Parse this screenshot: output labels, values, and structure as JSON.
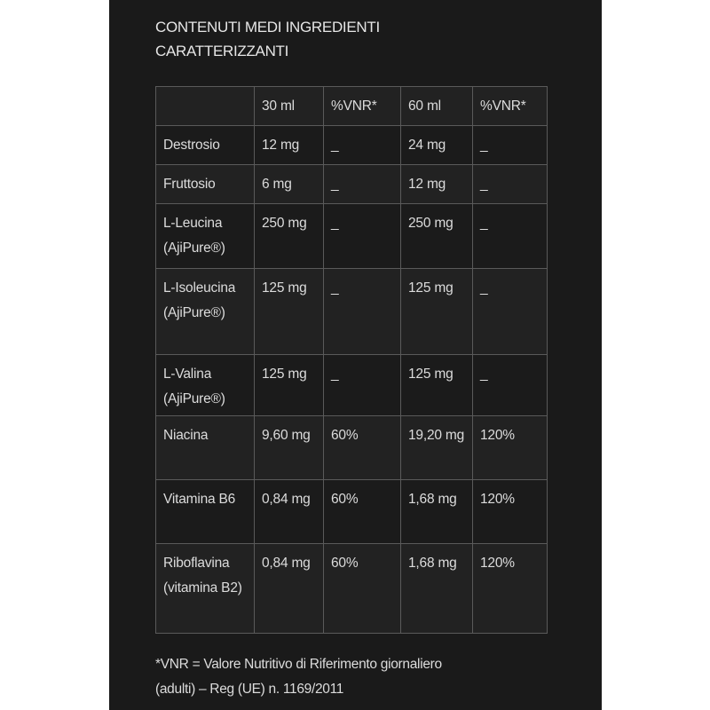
{
  "title_line1": "CONTENUTI MEDI INGREDIENTI",
  "title_line2": "CARATTERIZZANTI",
  "headers": [
    "",
    "30 ml",
    "%VNR*",
    "60 ml",
    "%VNR*"
  ],
  "rows": [
    [
      "Destrosio",
      "12 mg",
      "_",
      "24 mg",
      "_"
    ],
    [
      "Fruttosio",
      "6 mg",
      "_",
      "12 mg",
      "_"
    ],
    [
      "L-Leucina (AjiPure®)",
      "250 mg",
      "_",
      "250 mg",
      "_"
    ],
    [
      "L-Isoleucina (AjiPure®)",
      "125 mg",
      "_",
      "125 mg",
      "_"
    ],
    [
      "L-Valina (AjiPure®)",
      "125 mg",
      "_",
      "125 mg",
      "_"
    ],
    [
      "Niacina",
      "9,60 mg",
      "60%",
      "19,20 mg",
      "120%"
    ],
    [
      "Vitamina B6",
      "0,84 mg",
      "60%",
      "1,68 mg",
      "120%"
    ],
    [
      "Riboflavina (vitamina B2)",
      "0,84 mg",
      "60%",
      "1,68 mg",
      "120%"
    ]
  ],
  "footnote_line1": "*VNR = Valore Nutritivo di Riferimento giornaliero",
  "footnote_line2": "(adulti) – Reg (UE) n. 1169/2011"
}
